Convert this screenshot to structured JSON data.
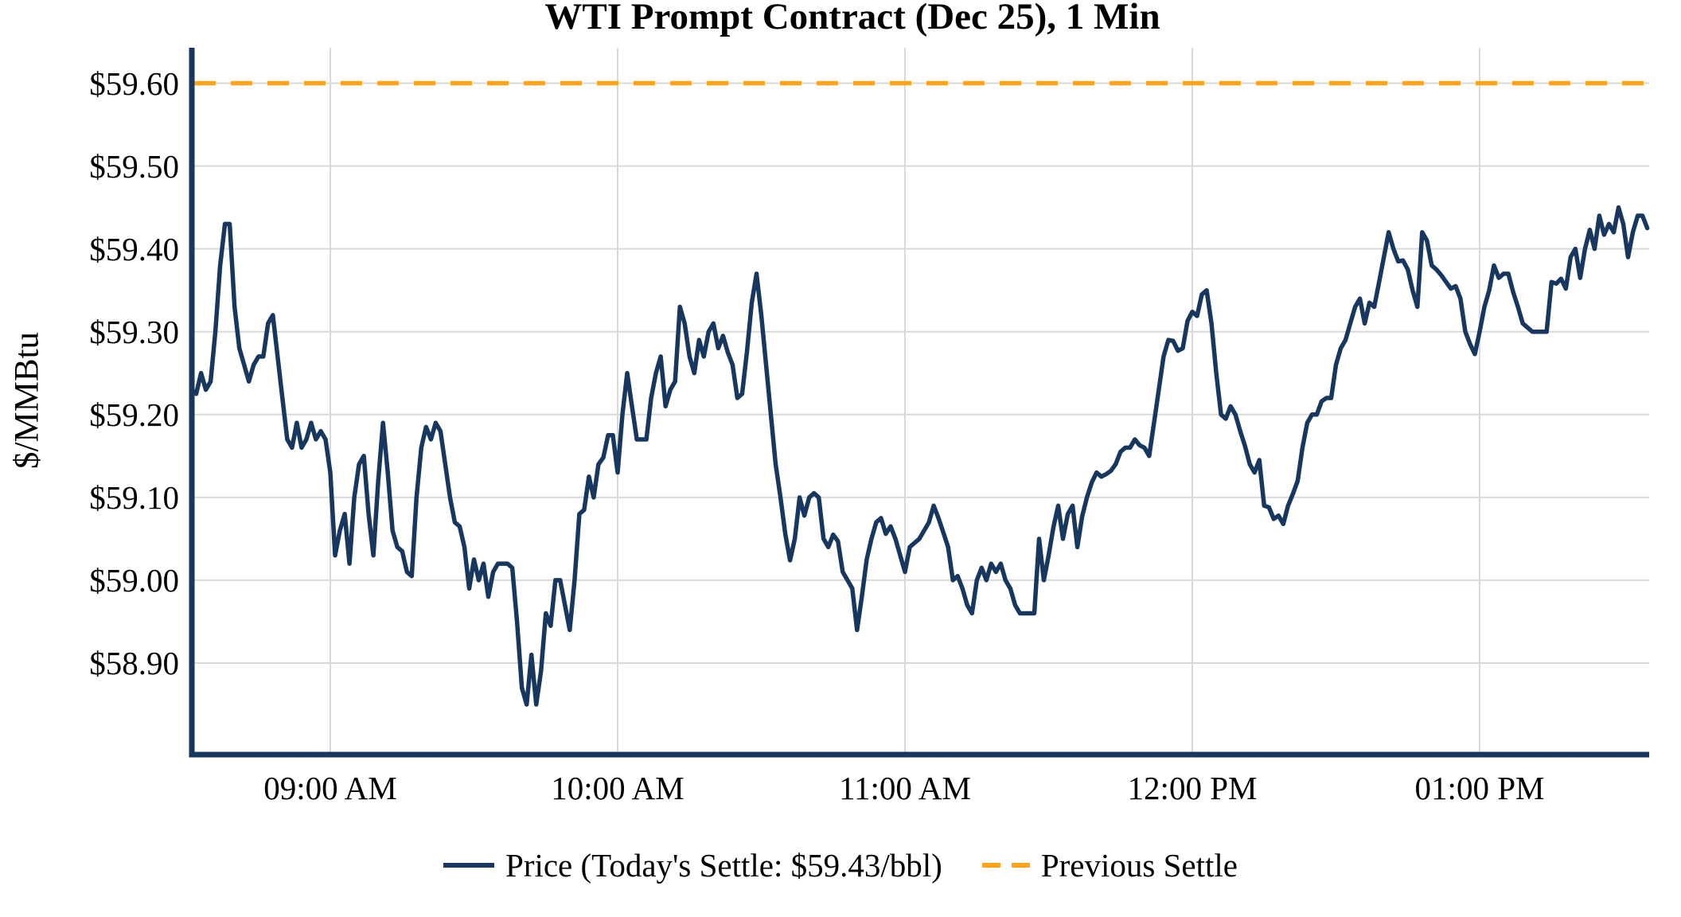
{
  "page": {
    "background": "#FFFFFF"
  },
  "legend": {
    "price_label": "Price (Today's Settle: $59.43/bbl)",
    "previous_settle_label": "Previous Settle"
  },
  "colors": {
    "price_line": "#17375E",
    "previous_settle_line": "#FFA318",
    "gridline": "#D9D9D9",
    "axis": "#17375E",
    "text": "#000000"
  },
  "chart_data": {
    "type": "line",
    "title": "WTI Prompt Contract (Dec 25), 1 Min",
    "xlabel": "",
    "ylabel": "$/MMBtu",
    "grid": true,
    "legend_position": "bottom",
    "x_tick_labels": [
      "09:00 AM",
      "10:00 AM",
      "11:00 AM",
      "12:00 PM",
      "01:00 PM"
    ],
    "x_tick_minutes_after_0830": [
      30,
      90,
      150,
      210,
      270
    ],
    "y_tick_labels": [
      "$59.60",
      "$59.50",
      "$59.40",
      "$59.30",
      "$59.20",
      "$59.10",
      "$59.00",
      "$58.90"
    ],
    "y_tick_values": [
      59.6,
      59.5,
      59.4,
      59.3,
      59.2,
      59.1,
      59.0,
      58.9
    ],
    "ylim": [
      58.789,
      59.643
    ],
    "x_start_time": "08:31 AM",
    "x_end_time": "01:35 PM",
    "previous_settle": 59.6,
    "todays_settle": 59.43,
    "series": [
      {
        "name": "Price (Today's Settle: $59.43/bbl)",
        "style": "solid",
        "color": "#17375E"
      },
      {
        "name": "Previous Settle",
        "style": "dashed",
        "color": "#FFA318",
        "value": 59.6
      }
    ],
    "price_minutes_start_after_0830": 1,
    "prices": [
      59.23,
      59.225,
      59.25,
      59.23,
      59.24,
      59.3,
      59.38,
      59.43,
      59.43,
      59.33,
      59.28,
      59.26,
      59.24,
      59.26,
      59.27,
      59.27,
      59.31,
      59.32,
      59.27,
      59.22,
      59.17,
      59.16,
      59.19,
      59.16,
      59.17,
      59.19,
      59.17,
      59.18,
      59.17,
      59.13,
      59.03,
      59.06,
      59.08,
      59.02,
      59.1,
      59.14,
      59.15,
      59.08,
      59.03,
      59.12,
      59.19,
      59.13,
      59.06,
      59.04,
      59.035,
      59.01,
      59.005,
      59.1,
      59.16,
      59.185,
      59.17,
      59.19,
      59.18,
      59.14,
      59.1,
      59.07,
      59.065,
      59.04,
      58.99,
      59.025,
      59.0,
      59.02,
      58.98,
      59.01,
      59.02,
      59.02,
      59.02,
      59.015,
      58.95,
      58.87,
      58.85,
      58.91,
      58.85,
      58.89,
      58.96,
      58.945,
      59.0,
      59.0,
      58.97,
      58.94,
      59.0,
      59.08,
      59.085,
      59.125,
      59.1,
      59.14,
      59.148,
      59.175,
      59.175,
      59.13,
      59.2,
      59.25,
      59.21,
      59.17,
      59.17,
      59.17,
      59.22,
      59.25,
      59.27,
      59.21,
      59.23,
      59.24,
      59.33,
      59.31,
      59.27,
      59.25,
      59.29,
      59.27,
      59.3,
      59.31,
      59.28,
      59.295,
      59.275,
      59.26,
      59.22,
      59.225,
      59.276,
      59.335,
      59.37,
      59.32,
      59.26,
      59.2,
      59.14,
      59.1,
      59.056,
      59.024,
      59.05,
      59.1,
      59.078,
      59.1,
      59.105,
      59.1,
      59.05,
      59.04,
      59.055,
      59.047,
      59.01,
      59.0,
      58.99,
      58.94,
      58.98,
      59.025,
      59.05,
      59.07,
      59.075,
      59.056,
      59.065,
      59.05,
      59.03,
      59.01,
      59.04,
      59.045,
      59.05,
      59.06,
      59.07,
      59.09,
      59.075,
      59.058,
      59.04,
      59.0,
      59.005,
      58.99,
      58.97,
      58.96,
      59.0,
      59.015,
      59.0,
      59.02,
      59.01,
      59.02,
      59.0,
      58.99,
      58.97,
      58.96,
      58.96,
      58.96,
      58.96,
      59.05,
      59.0,
      59.03,
      59.064,
      59.09,
      59.05,
      59.08,
      59.09,
      59.04,
      59.077,
      59.1,
      59.118,
      59.13,
      59.125,
      59.128,
      59.132,
      59.14,
      59.155,
      59.16,
      59.16,
      59.17,
      59.163,
      59.16,
      59.15,
      59.19,
      59.23,
      59.27,
      59.29,
      59.289,
      59.277,
      59.28,
      59.313,
      59.324,
      59.319,
      59.345,
      59.35,
      59.31,
      59.25,
      59.2,
      59.195,
      59.21,
      59.2,
      59.18,
      59.162,
      59.14,
      59.13,
      59.145,
      59.09,
      59.088,
      59.074,
      59.078,
      59.068,
      59.09,
      59.104,
      59.12,
      59.16,
      59.19,
      59.2,
      59.2,
      59.216,
      59.22,
      59.22,
      59.26,
      59.28,
      59.29,
      59.31,
      59.33,
      59.34,
      59.31,
      59.335,
      59.33,
      59.36,
      59.39,
      59.42,
      59.4,
      59.385,
      59.386,
      59.375,
      59.35,
      59.33,
      59.42,
      59.41,
      59.38,
      59.375,
      59.368,
      59.36,
      59.352,
      59.355,
      59.34,
      59.3,
      59.285,
      59.273,
      59.3,
      59.33,
      59.35,
      59.38,
      59.365,
      59.37,
      59.37,
      59.348,
      59.33,
      59.31,
      59.305,
      59.3,
      59.3,
      59.3,
      59.3,
      59.36,
      59.358,
      59.364,
      59.352,
      59.39,
      59.4,
      59.365,
      59.4,
      59.423,
      59.4,
      59.44,
      59.417,
      59.43,
      59.42,
      59.45,
      59.43,
      59.39,
      59.42,
      59.44,
      59.44,
      59.425
    ]
  }
}
